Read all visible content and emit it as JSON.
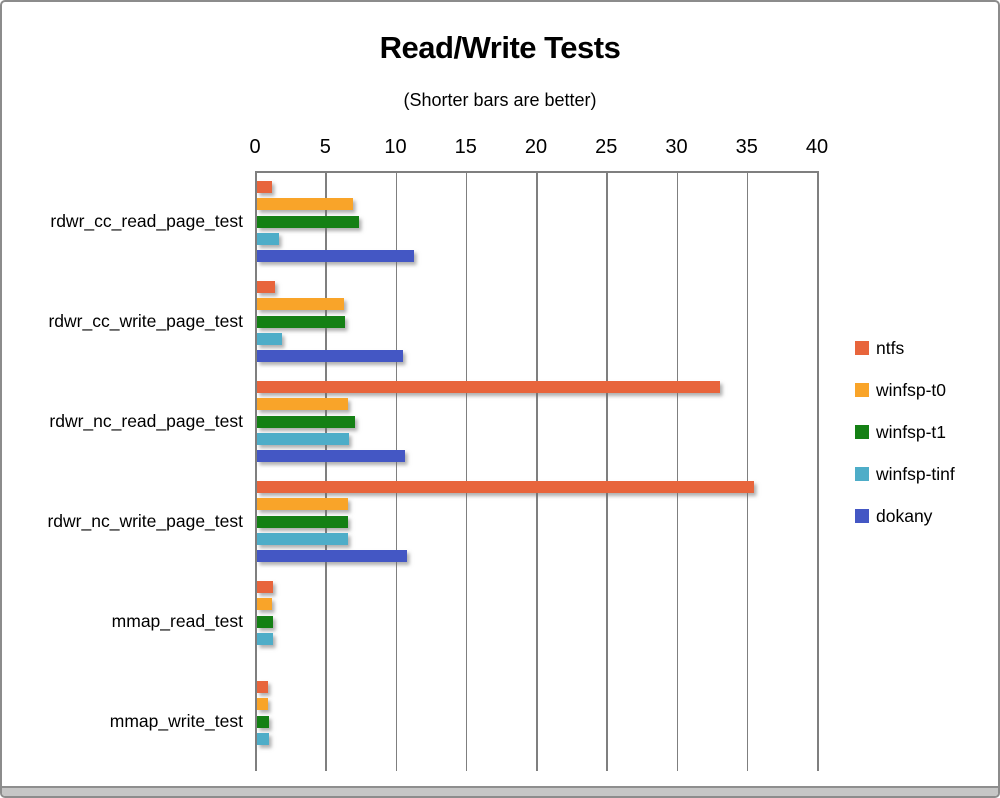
{
  "window": {
    "border_color": "#8c8c8c",
    "bottom_strip_color": "#c6c6c6"
  },
  "chart_data": {
    "type": "bar",
    "orientation": "horizontal",
    "title": "Read/Write Tests",
    "subtitle": "(Shorter bars are better)",
    "grid": true,
    "gridline_color": "#7f7f7f",
    "value_axis": {
      "position": "top",
      "min": 0,
      "max": 40,
      "step": 5,
      "tick_labels": [
        "0",
        "5",
        "10",
        "15",
        "20",
        "25",
        "30",
        "35",
        "40"
      ]
    },
    "categories": [
      "rdwr_cc_read_page_test",
      "rdwr_cc_write_page_test",
      "rdwr_nc_read_page_test",
      "rdwr_nc_write_page_test",
      "mmap_read_test",
      "mmap_write_test"
    ],
    "series": [
      {
        "name": "ntfs",
        "color": "#E8653C",
        "values": [
          1.1,
          1.3,
          33.0,
          35.4,
          1.2,
          0.8
        ]
      },
      {
        "name": "winfsp-t0",
        "color": "#F9A429",
        "values": [
          6.9,
          6.2,
          6.5,
          6.5,
          1.1,
          0.8
        ]
      },
      {
        "name": "winfsp-t1",
        "color": "#148014",
        "values": [
          7.3,
          6.3,
          7.0,
          6.5,
          1.2,
          0.9
        ]
      },
      {
        "name": "winfsp-tinf",
        "color": "#4EADC8",
        "values": [
          1.6,
          1.8,
          6.6,
          6.5,
          1.2,
          0.9
        ]
      },
      {
        "name": "dokany",
        "color": "#4457C4",
        "values": [
          11.2,
          10.4,
          10.6,
          10.7,
          null,
          null
        ]
      }
    ],
    "legend": {
      "position": "right",
      "entries": [
        "ntfs",
        "winfsp-t0",
        "winfsp-t1",
        "winfsp-tinf",
        "dokany"
      ]
    }
  }
}
